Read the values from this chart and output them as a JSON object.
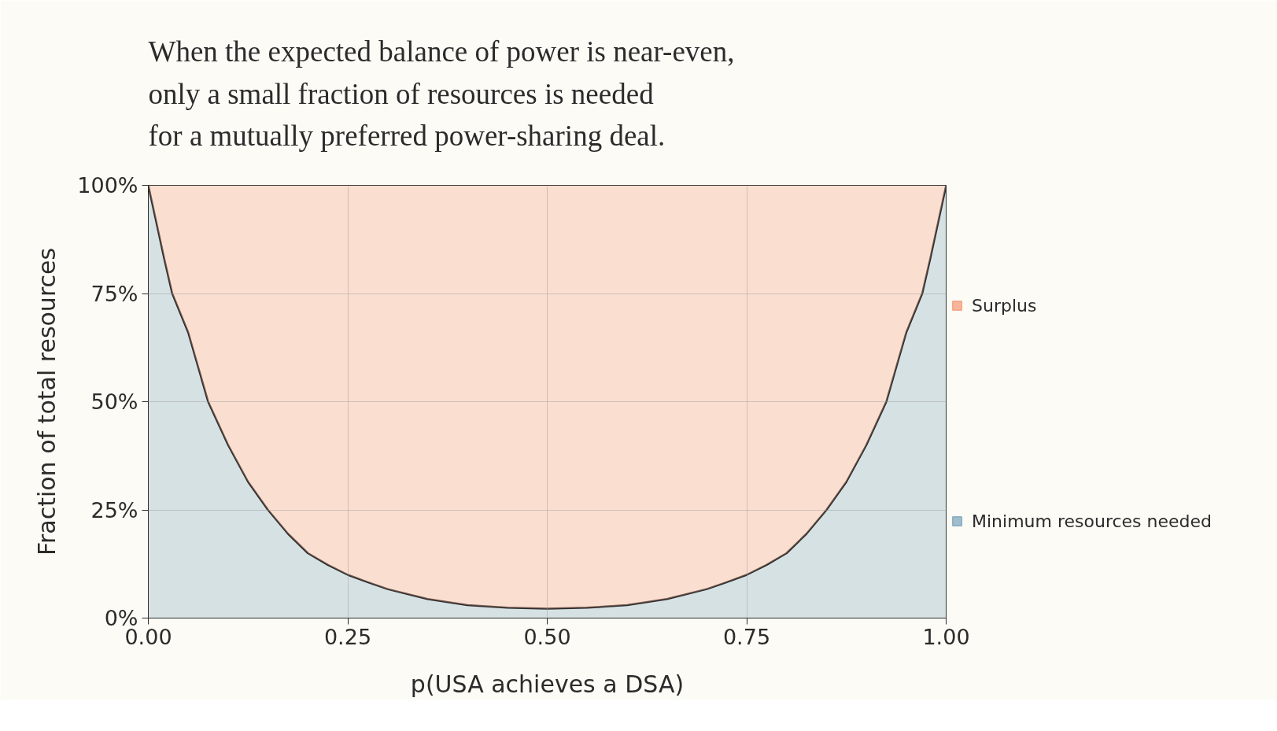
{
  "chart_data": {
    "type": "area",
    "stacked": true,
    "title": "When the expected balance of power is near-even,\nonly a small fraction of resources is needed\nfor a mutually preferred power-sharing deal.",
    "xlabel": "p(USA achieves a DSA)",
    "ylabel": "Fraction of total resources",
    "x": [
      0,
      0.01,
      0.02,
      0.03,
      0.04,
      0.05,
      0.0625,
      0.075,
      0.1,
      0.125,
      0.15,
      0.175,
      0.2,
      0.225,
      0.25,
      0.275,
      0.3,
      0.35,
      0.4,
      0.45,
      0.5,
      0.55,
      0.6,
      0.65,
      0.7,
      0.725,
      0.75,
      0.775,
      0.8,
      0.825,
      0.85,
      0.875,
      0.9,
      0.925,
      0.9375,
      0.95,
      0.96,
      0.97,
      0.98,
      0.99,
      1
    ],
    "series": [
      {
        "name": "Minimum resources needed",
        "color": "#8fb1c6",
        "values": [
          1,
          0.915,
          0.83,
          0.75,
          0.705,
          0.66,
          0.58,
          0.5,
          0.4,
          0.315,
          0.25,
          0.195,
          0.15,
          0.123,
          0.1,
          0.083,
          0.067,
          0.044,
          0.03,
          0.024,
          0.022,
          0.024,
          0.03,
          0.044,
          0.067,
          0.083,
          0.1,
          0.123,
          0.15,
          0.195,
          0.25,
          0.315,
          0.4,
          0.5,
          0.58,
          0.66,
          0.705,
          0.75,
          0.83,
          0.915,
          1
        ]
      },
      {
        "name": "Surplus",
        "color": "#f6a98c",
        "values": [
          0,
          0.085,
          0.17,
          0.25,
          0.295,
          0.34,
          0.42,
          0.5,
          0.6,
          0.685,
          0.75,
          0.805,
          0.85,
          0.877,
          0.9,
          0.917,
          0.933,
          0.956,
          0.97,
          0.976,
          0.978,
          0.976,
          0.97,
          0.956,
          0.933,
          0.917,
          0.9,
          0.877,
          0.85,
          0.805,
          0.75,
          0.685,
          0.6,
          0.5,
          0.42,
          0.34,
          0.295,
          0.25,
          0.17,
          0.085,
          0
        ]
      }
    ],
    "xlim": [
      0,
      1
    ],
    "ylim": [
      0,
      1
    ],
    "xticks": [
      {
        "value": 0,
        "label": "0.00"
      },
      {
        "value": 0.25,
        "label": "0.25"
      },
      {
        "value": 0.5,
        "label": "0.50"
      },
      {
        "value": 0.75,
        "label": "0.75"
      },
      {
        "value": 1,
        "label": "1.00"
      }
    ],
    "yticks": [
      {
        "value": 0,
        "label": "0%"
      },
      {
        "value": 0.25,
        "label": "25%"
      },
      {
        "value": 0.5,
        "label": "50%"
      },
      {
        "value": 0.75,
        "label": "75%"
      },
      {
        "value": 1,
        "label": "100%"
      }
    ],
    "grid": true,
    "legend": "right"
  }
}
